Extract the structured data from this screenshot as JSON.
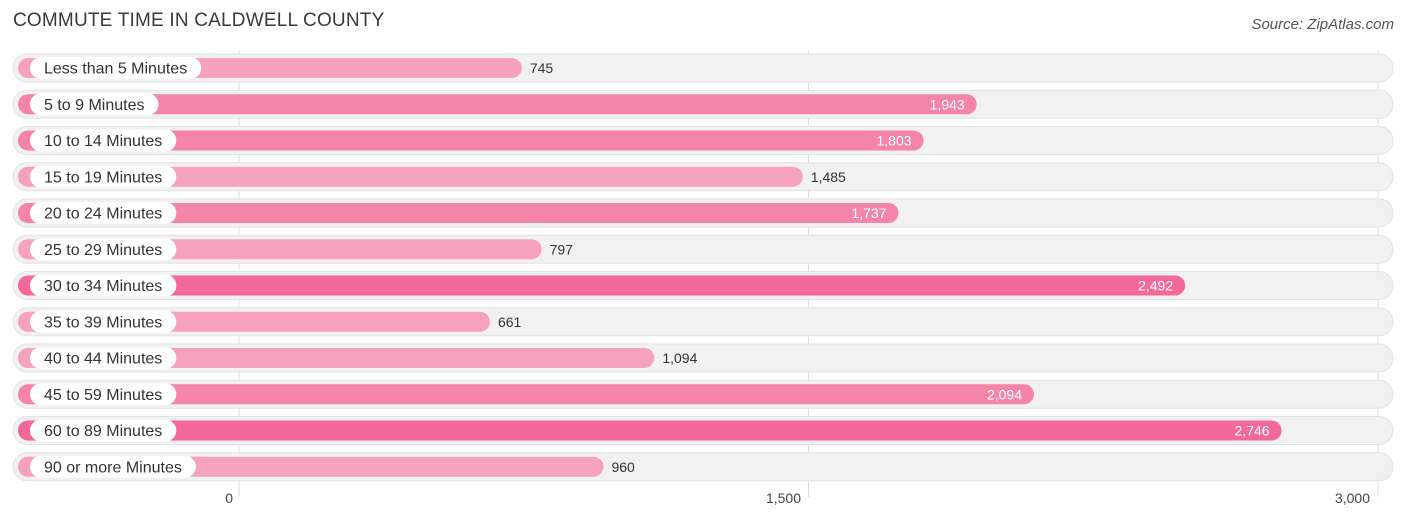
{
  "header": {
    "title": "COMMUTE TIME IN CALDWELL COUNTY",
    "source": "Source: ZipAtlas.com"
  },
  "chart_data": {
    "type": "bar",
    "orientation": "horizontal",
    "title": "COMMUTE TIME IN CALDWELL COUNTY",
    "categories": [
      "Less than 5 Minutes",
      "5 to 9 Minutes",
      "10 to 14 Minutes",
      "15 to 19 Minutes",
      "20 to 24 Minutes",
      "25 to 29 Minutes",
      "30 to 34 Minutes",
      "35 to 39 Minutes",
      "40 to 44 Minutes",
      "45 to 59 Minutes",
      "60 to 89 Minutes",
      "90 or more Minutes"
    ],
    "values": [
      745,
      1943,
      1803,
      1485,
      1737,
      797,
      2492,
      661,
      1094,
      2094,
      2746,
      960
    ],
    "value_labels": [
      "745",
      "1,943",
      "1,803",
      "1,485",
      "1,737",
      "797",
      "2,492",
      "661",
      "1,094",
      "2,094",
      "2,746",
      "960"
    ],
    "xlim": [
      0,
      3000
    ],
    "ticks": [
      0,
      1500,
      3000
    ],
    "tick_labels": [
      "0",
      "1,500",
      "3,000"
    ],
    "grid": true,
    "colors": {
      "bar_light": "#f7a2bd",
      "bar_mid": "#f484a8",
      "bar_strong": "#f2689a",
      "track": "#f1f1f1"
    }
  }
}
